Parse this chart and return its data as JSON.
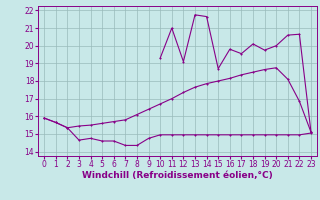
{
  "bg_color": "#c8e8e8",
  "line_color": "#880088",
  "grid_color": "#99bbbb",
  "xlabel": "Windchill (Refroidissement éolien,°C)",
  "xlabel_fontsize": 6.5,
  "tick_fontsize": 5.5,
  "xlim": [
    -0.5,
    23.5
  ],
  "ylim": [
    13.75,
    22.25
  ],
  "xticks": [
    0,
    1,
    2,
    3,
    4,
    5,
    6,
    7,
    8,
    9,
    10,
    11,
    12,
    13,
    14,
    15,
    16,
    17,
    18,
    19,
    20,
    21,
    22,
    23
  ],
  "yticks": [
    14,
    15,
    16,
    17,
    18,
    19,
    20,
    21,
    22
  ],
  "line1_x": [
    0,
    1,
    2,
    3,
    4,
    5,
    6,
    7,
    8,
    9,
    10,
    11,
    12,
    13,
    14,
    15,
    16,
    17,
    18,
    19,
    20,
    21,
    22,
    23
  ],
  "line1_y": [
    15.9,
    15.65,
    15.35,
    14.65,
    14.75,
    14.6,
    14.6,
    14.35,
    14.35,
    14.75,
    14.95,
    14.95,
    14.95,
    14.95,
    14.95,
    14.95,
    14.95,
    14.95,
    14.95,
    14.95,
    14.95,
    14.95,
    14.95,
    15.05
  ],
  "line2_x": [
    0,
    1,
    2,
    3,
    4,
    5,
    6,
    7,
    8,
    9,
    10,
    11,
    12,
    13,
    14,
    15,
    16,
    17,
    18,
    19,
    20,
    21,
    22,
    23
  ],
  "line2_y": [
    15.9,
    15.65,
    15.35,
    15.45,
    15.5,
    15.6,
    15.7,
    15.8,
    16.1,
    16.4,
    16.7,
    17.0,
    17.35,
    17.65,
    17.85,
    18.0,
    18.15,
    18.35,
    18.5,
    18.65,
    18.75,
    18.1,
    16.85,
    15.1
  ],
  "line3_x": [
    10,
    11,
    12,
    13,
    14,
    15,
    16,
    17,
    18,
    19,
    20,
    21,
    22,
    23
  ],
  "line3_y": [
    19.3,
    21.0,
    19.1,
    21.75,
    21.65,
    18.7,
    19.8,
    19.55,
    20.1,
    19.75,
    20.0,
    20.6,
    20.65,
    15.1
  ]
}
